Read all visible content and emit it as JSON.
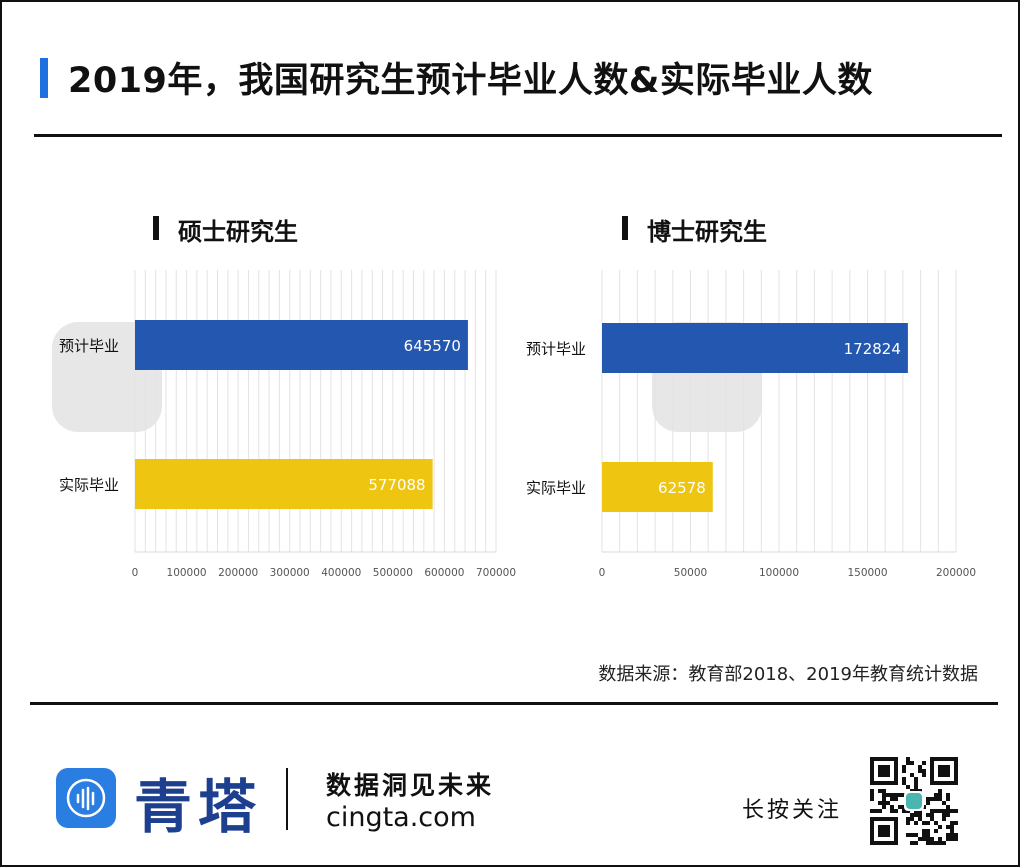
{
  "title": "2019年，我国研究生预计毕业人数&实际毕业人数",
  "chart_data": [
    {
      "type": "bar",
      "orientation": "horizontal",
      "title": "硕士研究生",
      "categories": [
        "预计毕业",
        "实际毕业"
      ],
      "values": [
        645570,
        577088
      ],
      "bar_colors": [
        "#2457b0",
        "#eec511"
      ],
      "xlim": [
        0,
        700000
      ],
      "xticks": [
        0,
        100000,
        200000,
        300000,
        400000,
        500000,
        600000,
        700000
      ],
      "tick_labels": [
        "0",
        "100000",
        "200000",
        "300000",
        "400000",
        "500000",
        "600000",
        "700000"
      ],
      "value_labels": [
        "645570",
        "577088"
      ],
      "grid": true
    },
    {
      "type": "bar",
      "orientation": "horizontal",
      "title": "博士研究生",
      "categories": [
        "预计毕业",
        "实际毕业"
      ],
      "values": [
        172824,
        62578
      ],
      "bar_colors": [
        "#2457b0",
        "#eec511"
      ],
      "xlim": [
        0,
        200000
      ],
      "xticks": [
        0,
        50000,
        100000,
        150000,
        200000
      ],
      "tick_labels": [
        "0",
        "50000",
        "100000",
        "150000",
        "200000"
      ],
      "value_labels": [
        "172824",
        "62578"
      ],
      "grid": true
    }
  ],
  "source": "数据来源：教育部2018、2019年教育统计数据",
  "footer": {
    "brand": "青塔",
    "slogan": "数据洞见未来",
    "domain": "cingta.com",
    "follow": "长按关注"
  },
  "icons": {
    "logo": "cingta-logo-icon",
    "qr": "qr-code-icon"
  },
  "colors": {
    "accent": "#1e6fe0",
    "brand": "#1d3f8f",
    "logo_bg": "#2a7de1"
  }
}
